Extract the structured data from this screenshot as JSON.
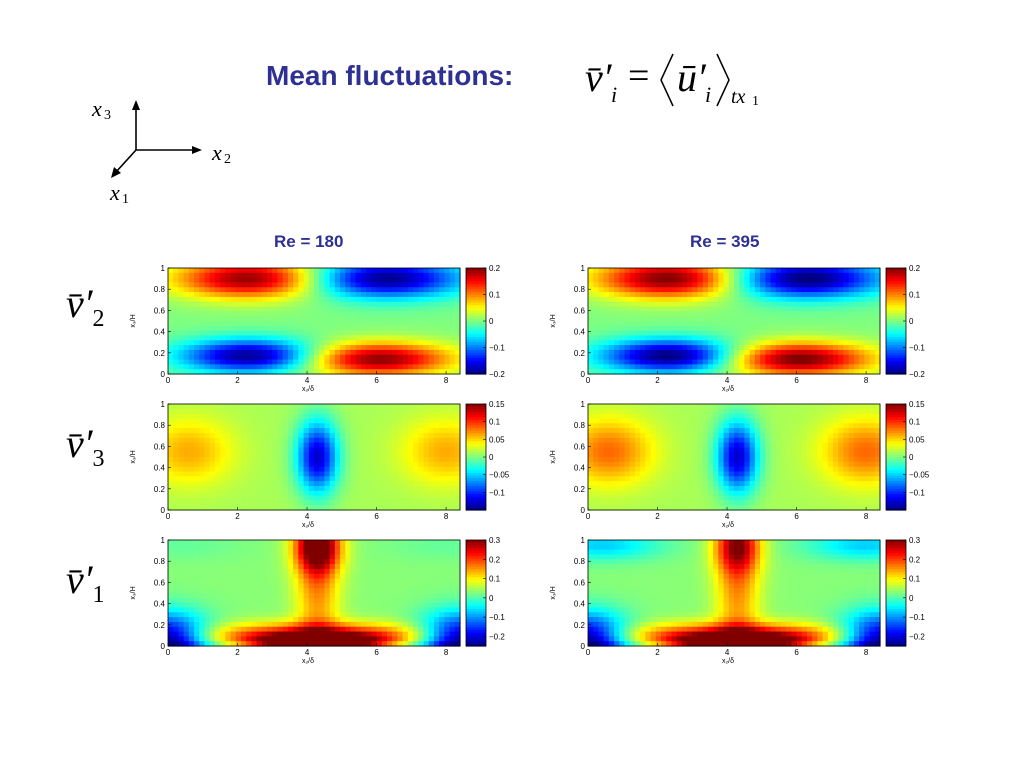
{
  "title": {
    "text": "Mean fluctuations:",
    "equation_lhs": "v̄′",
    "equation_lhs_sub": "i",
    "equation_eq": "=",
    "equation_rhs": "ū′",
    "equation_rhs_sub": "i",
    "equation_avg_sub": "tx",
    "equation_avg_sub2": "1"
  },
  "axes_triad": {
    "x3": "x",
    "x3_sub": "3",
    "x2": "x",
    "x2_sub": "2",
    "x1": "x",
    "x1_sub": "1"
  },
  "columns": [
    {
      "title": "Re = 180"
    },
    {
      "title": "Re = 395"
    }
  ],
  "rows": [
    {
      "label": "v̄′",
      "sub": "2",
      "field": "v2",
      "cbar_ticks": [
        "0.2",
        "0.1",
        "0",
        "−0.1",
        "−0.2"
      ],
      "cbar_range": [
        -0.2,
        0.2
      ]
    },
    {
      "label": "v̄′",
      "sub": "3",
      "field": "v3",
      "cbar_ticks": [
        "0.15",
        "0.1",
        "0.05",
        "0",
        "−0.05",
        "−0.1"
      ],
      "cbar_range": [
        -0.15,
        0.15
      ]
    },
    {
      "label": "v̄′",
      "sub": "1",
      "field": "v1",
      "cbar_ticks": [
        "0.3",
        "0.2",
        "0.1",
        "0",
        "−0.1",
        "−0.2"
      ],
      "cbar_range": [
        -0.25,
        0.3
      ]
    }
  ],
  "plot_axes": {
    "xlabel": "x₂/δ",
    "ylabel": "x₃/H",
    "xticks": [
      "0",
      "2",
      "4",
      "6",
      "8"
    ],
    "yticks": [
      "0",
      "0.2",
      "0.4",
      "0.6",
      "0.8",
      "1"
    ],
    "xlim": [
      0,
      8.4
    ],
    "ylim": [
      0,
      1
    ]
  },
  "colormap": "jet"
}
